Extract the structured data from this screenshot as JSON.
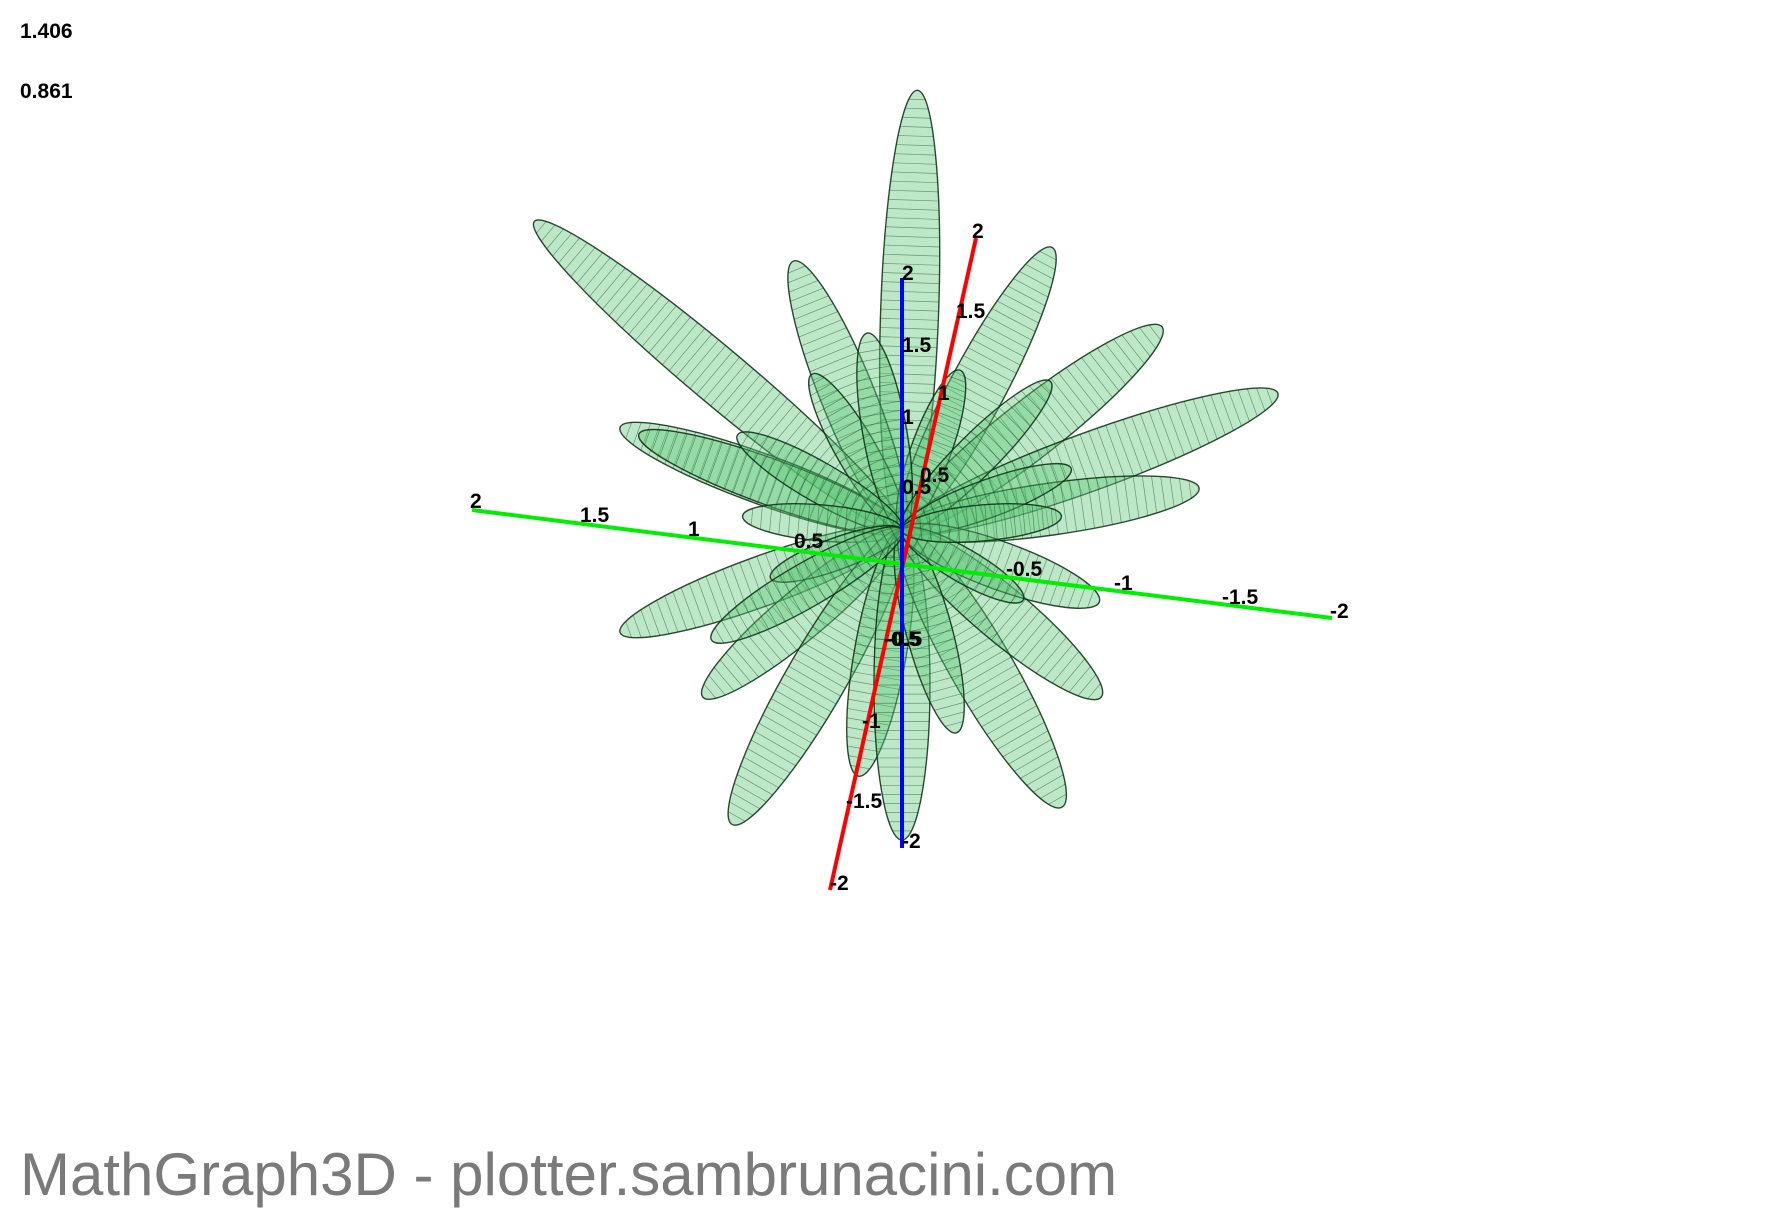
{
  "readouts": {
    "first": "1.406",
    "second": "0.861"
  },
  "watermark": "MathGraph3D - plotter.sambrunacini.com",
  "colors": {
    "surface_fill": "#5fc87a",
    "surface_edge": "#0a2a12",
    "x_axis": "#ff0000",
    "y_axis": "#00ee00",
    "z_axis": "#0000ff"
  },
  "axes": {
    "y_ticks": [
      "2",
      "1.5",
      "1",
      "0.5",
      "-0.5",
      "-1",
      "-1.5",
      "-2"
    ],
    "x_ticks": [
      "2",
      "1.5",
      "1",
      "0.5",
      "-0.5",
      "-1",
      "-1.5",
      "-2"
    ],
    "z_ticks": [
      "2",
      "1.5",
      "1",
      "0.5",
      "-0.5",
      "-2"
    ]
  }
}
